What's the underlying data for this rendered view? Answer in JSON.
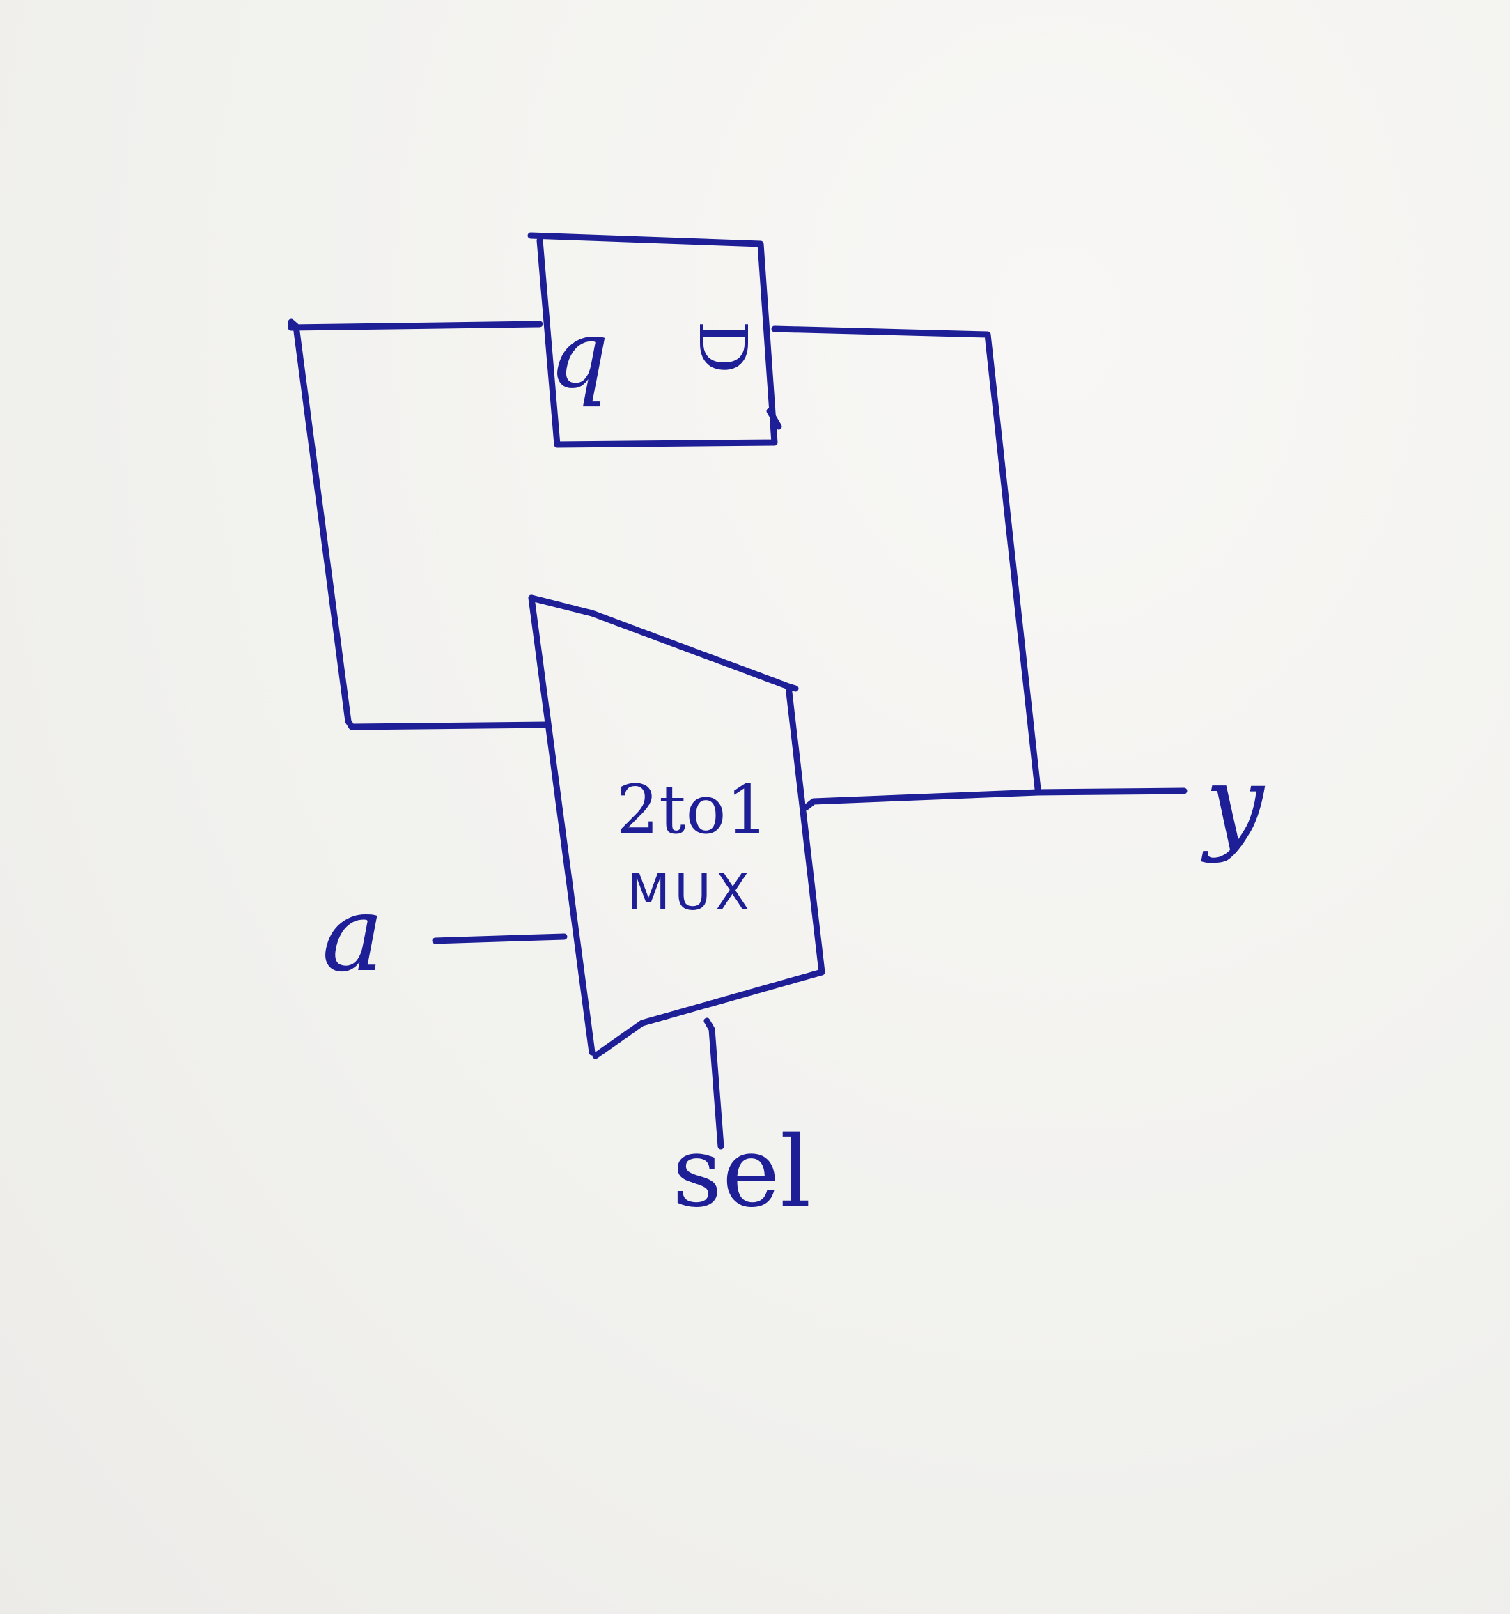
{
  "diagram": {
    "flipflop": {
      "left_port": "q",
      "right_port": "D"
    },
    "mux": {
      "line1": "2to1",
      "line2": "MUX"
    },
    "inputs": {
      "a": "a",
      "sel": "sel"
    },
    "output": {
      "y": "y"
    },
    "ink_color": "#1e1e96"
  }
}
